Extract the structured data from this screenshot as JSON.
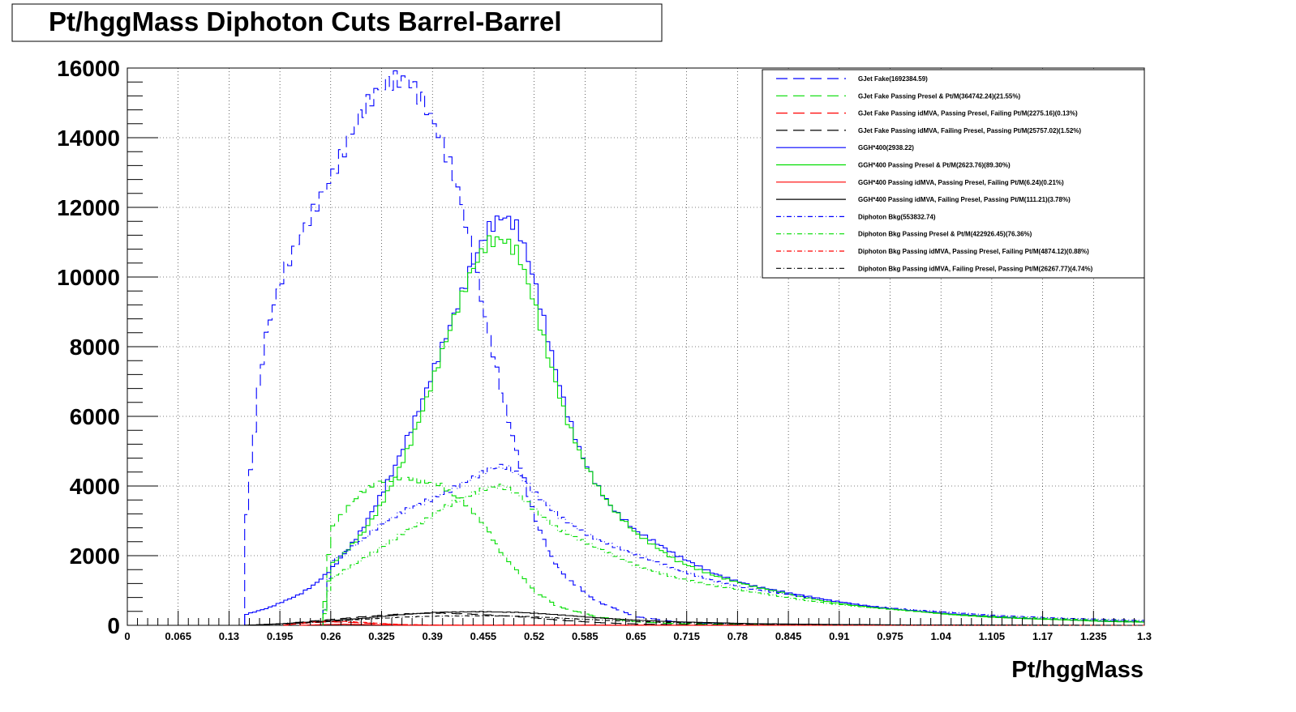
{
  "chart_data": {
    "type": "line",
    "title": "Pt/hggMass Diphoton Cuts Barrel-Barrel",
    "xlabel": "Pt/hggMass",
    "ylabel": "",
    "xlim": [
      0,
      1.3
    ],
    "ylim": [
      0,
      16000
    ],
    "x_ticks": [
      "0",
      "0.065",
      "0.13",
      "0.195",
      "0.26",
      "0.325",
      "0.39",
      "0.455",
      "0.52",
      "0.585",
      "0.65",
      "0.715",
      "0.78",
      "0.845",
      "0.91",
      "0.975",
      "1.04",
      "1.105",
      "1.17",
      "1.235",
      "1.3"
    ],
    "y_ticks": [
      "0",
      "2000",
      "4000",
      "6000",
      "8000",
      "10000",
      "12000",
      "14000",
      "16000"
    ],
    "grid": true,
    "legend_position": "top-right",
    "series": [
      {
        "name": "GJet Fake(1692384.59)",
        "color": "#0000ff",
        "dash": "long-dash",
        "x": [
          0.15,
          0.16,
          0.17,
          0.18,
          0.2,
          0.22,
          0.24,
          0.26,
          0.28,
          0.3,
          0.32,
          0.34,
          0.36,
          0.38,
          0.4,
          0.42,
          0.44,
          0.46,
          0.48,
          0.5,
          0.52,
          0.54,
          0.56,
          0.6,
          0.65,
          0.7,
          0.75,
          0.8,
          0.9,
          1.0,
          1.1,
          1.2,
          1.3
        ],
        "y": [
          2500,
          5000,
          7200,
          8600,
          10200,
          11300,
          12200,
          13000,
          13800,
          14600,
          15100,
          15400,
          15500,
          15000,
          14200,
          13000,
          11000,
          8600,
          6500,
          4700,
          3100,
          2000,
          1400,
          700,
          250,
          100,
          50,
          30,
          10,
          5,
          2,
          1,
          0
        ]
      },
      {
        "name": "GJet Fake Passing Presel & Pt/M(364742.24)(21.55%)",
        "color": "#00dd00",
        "dash": "long-dash",
        "x": [
          0.25,
          0.26,
          0.28,
          0.3,
          0.32,
          0.34,
          0.36,
          0.38,
          0.4,
          0.42,
          0.44,
          0.46,
          0.48,
          0.5,
          0.52,
          0.55,
          0.6,
          0.65,
          0.7,
          0.8,
          0.9,
          1.0,
          1.3
        ],
        "y": [
          0,
          2700,
          3300,
          3800,
          4100,
          4250,
          4300,
          4200,
          4100,
          3700,
          3300,
          2700,
          2000,
          1500,
          1000,
          550,
          250,
          100,
          50,
          20,
          8,
          3,
          0
        ]
      },
      {
        "name": "GJet Fake Passing idMVA, Passing Presel, Failing Pt/M(2275.16)(0.13%)",
        "color": "#ff0000",
        "dash": "long-dash",
        "x": [
          0.2,
          0.22,
          0.24,
          0.26,
          0.28,
          0.3,
          0.32,
          0.35,
          0.4,
          1.3
        ],
        "y": [
          0,
          50,
          80,
          100,
          90,
          70,
          50,
          20,
          5,
          0
        ]
      },
      {
        "name": "GJet Fake Passing idMVA, Failing Presel, Passing Pt/M(25757.02)(1.52%)",
        "color": "#000000",
        "dash": "long-dash",
        "x": [
          0.15,
          0.2,
          0.25,
          0.3,
          0.35,
          0.4,
          0.45,
          0.5,
          0.55,
          0.6,
          0.65,
          0.7,
          0.8,
          1.3
        ],
        "y": [
          0,
          50,
          150,
          250,
          320,
          350,
          320,
          250,
          150,
          80,
          40,
          20,
          5,
          0
        ]
      },
      {
        "name": "GGH*400(2938.22)",
        "color": "#0000ff",
        "dash": "solid",
        "x": [
          0.15,
          0.18,
          0.2,
          0.22,
          0.24,
          0.26,
          0.28,
          0.3,
          0.32,
          0.34,
          0.36,
          0.38,
          0.4,
          0.42,
          0.44,
          0.46,
          0.48,
          0.5,
          0.52,
          0.54,
          0.56,
          0.58,
          0.6,
          0.62,
          0.65,
          0.7,
          0.75,
          0.8,
          0.85,
          0.9,
          0.95,
          1.0,
          1.05,
          1.1,
          1.15,
          1.2,
          1.25,
          1.3
        ],
        "y": [
          300,
          500,
          700,
          900,
          1200,
          1600,
          2100,
          2700,
          3500,
          4400,
          5500,
          6700,
          8000,
          9200,
          10400,
          11300,
          11600,
          11200,
          9800,
          8000,
          6300,
          5000,
          4100,
          3400,
          2700,
          2000,
          1500,
          1150,
          900,
          700,
          550,
          430,
          330,
          260,
          200,
          160,
          120,
          100
        ]
      },
      {
        "name": "GGH*400 Passing Presel & Pt/M(2623.76)(89.30%)",
        "color": "#00dd00",
        "dash": "solid",
        "x": [
          0.25,
          0.26,
          0.28,
          0.3,
          0.32,
          0.34,
          0.36,
          0.38,
          0.4,
          0.42,
          0.44,
          0.46,
          0.48,
          0.5,
          0.52,
          0.54,
          0.56,
          0.58,
          0.6,
          0.62,
          0.65,
          0.7,
          0.75,
          0.8,
          0.85,
          0.9,
          0.95,
          1.0,
          1.05,
          1.1,
          1.15,
          1.2,
          1.25,
          1.3
        ],
        "y": [
          0,
          1700,
          2100,
          2600,
          3300,
          4200,
          5200,
          6400,
          7700,
          8900,
          10000,
          10800,
          11000,
          10700,
          9400,
          7700,
          6100,
          4900,
          4000,
          3300,
          2600,
          1900,
          1450,
          1100,
          860,
          670,
          520,
          410,
          310,
          240,
          190,
          150,
          110,
          90
        ]
      },
      {
        "name": "GGH*400 Passing idMVA, Passing Presel, Failing Pt/M(6.24)(0.21%)",
        "color": "#ff0000",
        "dash": "solid",
        "x": [
          0.22,
          0.25,
          0.28,
          0.3,
          0.32,
          0.35,
          1.3
        ],
        "y": [
          0,
          20,
          30,
          25,
          15,
          5,
          0
        ]
      },
      {
        "name": "GGH*400 Passing idMVA, Failing Presel, Passing Pt/M(111.21)(3.78%)",
        "color": "#000000",
        "dash": "solid",
        "x": [
          0.15,
          0.2,
          0.25,
          0.3,
          0.35,
          0.4,
          0.45,
          0.5,
          0.55,
          0.6,
          0.65,
          0.7,
          0.8,
          0.9,
          1.0,
          1.3
        ],
        "y": [
          0,
          50,
          120,
          200,
          300,
          380,
          400,
          370,
          300,
          220,
          150,
          100,
          50,
          25,
          12,
          0
        ]
      },
      {
        "name": "Diphoton Bkg(553832.74)",
        "color": "#0000ff",
        "dash": "dash-dot",
        "x": [
          0.25,
          0.26,
          0.28,
          0.3,
          0.32,
          0.34,
          0.36,
          0.38,
          0.4,
          0.42,
          0.44,
          0.46,
          0.48,
          0.5,
          0.52,
          0.55,
          0.6,
          0.65,
          0.7,
          0.75,
          0.8,
          0.85,
          0.9,
          0.95,
          1.0,
          1.05,
          1.1,
          1.15,
          1.2,
          1.25,
          1.3
        ],
        "y": [
          0,
          1800,
          2100,
          2400,
          2800,
          3100,
          3400,
          3600,
          3800,
          4000,
          4200,
          4400,
          4500,
          4300,
          3800,
          3200,
          2500,
          2000,
          1600,
          1300,
          1050,
          850,
          700,
          560,
          450,
          370,
          300,
          250,
          200,
          170,
          140
        ]
      },
      {
        "name": "Diphoton Bkg Passing Presel & Pt/M(422926.45)(76.36%)",
        "color": "#00dd00",
        "dash": "dash-dot",
        "x": [
          0.25,
          0.26,
          0.28,
          0.3,
          0.32,
          0.34,
          0.36,
          0.38,
          0.4,
          0.42,
          0.44,
          0.46,
          0.48,
          0.5,
          0.52,
          0.55,
          0.6,
          0.65,
          0.7,
          0.75,
          0.8,
          0.85,
          0.9,
          0.95,
          1.0,
          1.05,
          1.1,
          1.15,
          1.2,
          1.25,
          1.3
        ],
        "y": [
          0,
          1300,
          1600,
          1900,
          2200,
          2500,
          2800,
          3000,
          3300,
          3500,
          3700,
          3900,
          4000,
          3800,
          3400,
          2800,
          2200,
          1700,
          1400,
          1150,
          940,
          770,
          630,
          510,
          410,
          330,
          270,
          220,
          180,
          150,
          120
        ]
      },
      {
        "name": "Diphoton Bkg Passing idMVA, Passing Presel, Failing Pt/M(4874.12)(0.88%)",
        "color": "#ff0000",
        "dash": "dash-dot",
        "x": [
          0.2,
          0.22,
          0.24,
          0.26,
          0.28,
          0.3,
          0.32,
          0.35,
          0.4,
          1.3
        ],
        "y": [
          0,
          60,
          100,
          120,
          110,
          90,
          60,
          25,
          5,
          0
        ]
      },
      {
        "name": "Diphoton Bkg Passing idMVA, Failing Presel, Passing Pt/M(26267.77)(4.74%)",
        "color": "#000000",
        "dash": "dash-dot",
        "x": [
          0.15,
          0.2,
          0.25,
          0.3,
          0.35,
          0.4,
          0.45,
          0.5,
          0.55,
          0.6,
          0.65,
          0.7,
          0.8,
          0.9,
          1.0,
          1.3
        ],
        "y": [
          0,
          40,
          100,
          170,
          230,
          270,
          280,
          260,
          210,
          160,
          110,
          75,
          35,
          15,
          7,
          0
        ]
      }
    ]
  }
}
